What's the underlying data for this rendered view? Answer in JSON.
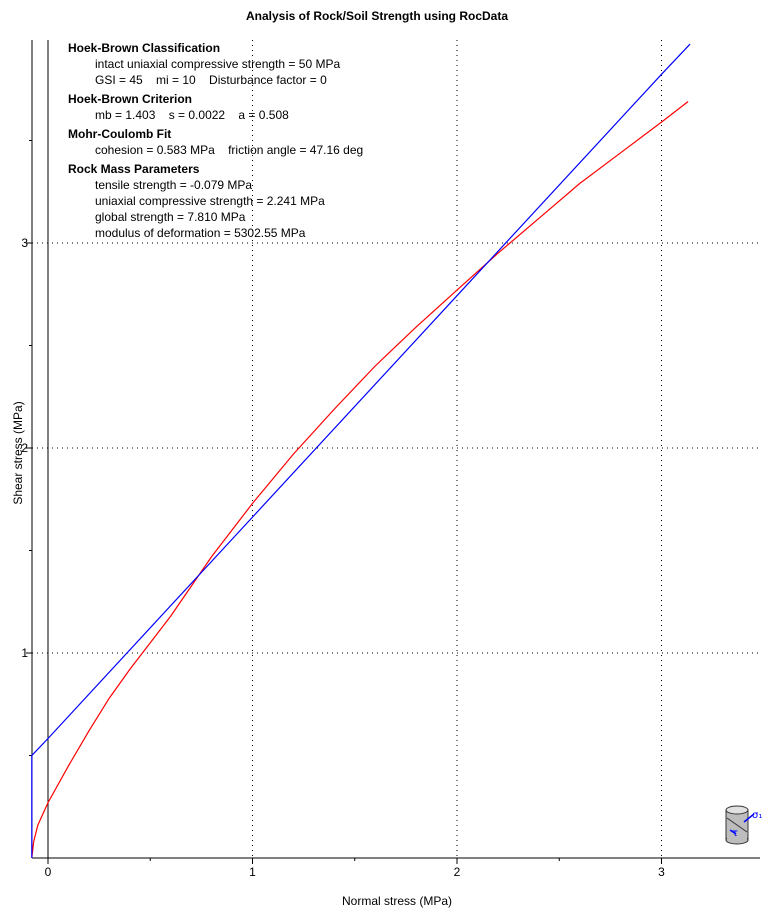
{
  "chart_data": {
    "type": "line",
    "title": "Analysis of Rock/Soil Strength using RocData",
    "xlabel": "Normal stress (MPa)",
    "ylabel": "Shear stress (MPa)",
    "xlim": [
      -0.08,
      3.5
    ],
    "ylim": [
      0,
      4.0
    ],
    "xticks": [
      0,
      1,
      2,
      3
    ],
    "yticks": [
      1,
      2,
      3
    ],
    "xtick_labels": [
      "0",
      "1",
      "2",
      "3"
    ],
    "ytick_labels": [
      "1",
      "2",
      "3"
    ],
    "grid": "dotted",
    "colors": {
      "hoek_brown": "#ff0000",
      "mohr_coulomb": "#0000ff",
      "axes": "#000000"
    },
    "series": [
      {
        "key": "hoek_brown",
        "x": [
          -0.079,
          -0.07,
          -0.05,
          0.0,
          0.1,
          0.2,
          0.3,
          0.4,
          0.5,
          0.6,
          0.8,
          1.0,
          1.2,
          1.4,
          1.6,
          1.8,
          2.0,
          2.2,
          2.4,
          2.6,
          2.8,
          3.0,
          3.13
        ],
        "y": [
          0.0,
          0.08,
          0.16,
          0.27,
          0.45,
          0.62,
          0.78,
          0.92,
          1.05,
          1.18,
          1.47,
          1.73,
          1.97,
          2.19,
          2.4,
          2.59,
          2.77,
          2.95,
          3.12,
          3.29,
          3.44,
          3.59,
          3.69
        ]
      },
      {
        "key": "mohr_coulomb",
        "x": [
          -0.079,
          -0.079,
          -0.06,
          0.0,
          1.0,
          2.0,
          3.0,
          3.14
        ],
        "y": [
          0.0,
          0.5,
          0.52,
          0.583,
          1.663,
          2.743,
          3.823,
          3.97
        ]
      }
    ],
    "annotations": [
      {
        "heading": "Hoek-Brown Classification",
        "lines": [
          "intact uniaxial compressive strength = 50 MPa",
          "GSI = 45    mi = 10    Disturbance factor = 0"
        ]
      },
      {
        "heading": "Hoek-Brown Criterion",
        "lines": [
          "mb = 1.403    s = 0.0022    a = 0.508"
        ]
      },
      {
        "heading": "Mohr-Coulomb Fit",
        "lines": [
          "cohesion = 0.583 MPa    friction angle = 47.16 deg"
        ]
      },
      {
        "heading": "Rock Mass Parameters",
        "lines": [
          "tensile strength = -0.079 MPa",
          "uniaxial compressive strength = 2.241 MPa",
          "global strength = 7.810 MPa",
          "modulus of deformation = 5302.55 MPa"
        ]
      }
    ]
  },
  "icon": {
    "name": "rock-sample-cylinder-icon",
    "symbol_sigma": "σ₁",
    "symbol_tau": "τ"
  }
}
